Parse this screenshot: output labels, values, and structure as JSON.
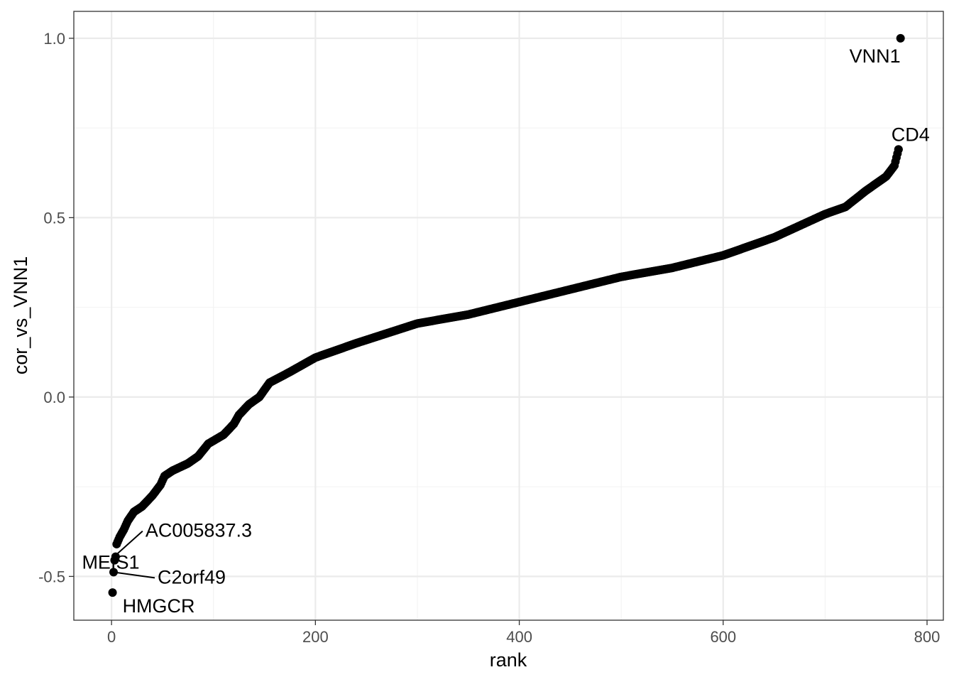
{
  "chart_data": {
    "type": "scatter",
    "xlabel": "rank",
    "ylabel": "cor_vs_VNN1",
    "xlim": [
      -37,
      816
    ],
    "ylim": [
      -0.622,
      1.075
    ],
    "x_ticks": [
      0,
      200,
      400,
      600,
      800
    ],
    "x_tick_labels": [
      "0",
      "200",
      "400",
      "600",
      "800"
    ],
    "y_ticks": [
      -0.5,
      0.0,
      0.5,
      1.0
    ],
    "y_tick_labels": [
      "-0.5",
      "0.0",
      "0.5",
      "1.0"
    ],
    "grid": true,
    "point_color": "#000000",
    "curve_knots": [
      [
        5,
        -0.41
      ],
      [
        8,
        -0.39
      ],
      [
        12,
        -0.37
      ],
      [
        16,
        -0.345
      ],
      [
        22,
        -0.32
      ],
      [
        30,
        -0.305
      ],
      [
        40,
        -0.275
      ],
      [
        48,
        -0.245
      ],
      [
        52,
        -0.22
      ],
      [
        60,
        -0.205
      ],
      [
        75,
        -0.185
      ],
      [
        85,
        -0.165
      ],
      [
        95,
        -0.13
      ],
      [
        110,
        -0.105
      ],
      [
        120,
        -0.075
      ],
      [
        125,
        -0.05
      ],
      [
        135,
        -0.02
      ],
      [
        145,
        0.0
      ],
      [
        155,
        0.04
      ],
      [
        175,
        0.07
      ],
      [
        200,
        0.11
      ],
      [
        240,
        0.15
      ],
      [
        300,
        0.205
      ],
      [
        350,
        0.23
      ],
      [
        400,
        0.265
      ],
      [
        450,
        0.3
      ],
      [
        500,
        0.335
      ],
      [
        550,
        0.36
      ],
      [
        600,
        0.395
      ],
      [
        650,
        0.445
      ],
      [
        700,
        0.51
      ],
      [
        720,
        0.53
      ],
      [
        740,
        0.575
      ],
      [
        760,
        0.615
      ],
      [
        768,
        0.645
      ],
      [
        772,
        0.69
      ]
    ],
    "labeled_points": [
      {
        "label": "VNN1",
        "x": 774,
        "y": 1.0
      },
      {
        "label": "CD4",
        "x": 772,
        "y": 0.69
      },
      {
        "label": "AC005837.3",
        "x": 4,
        "y": -0.445
      },
      {
        "label": "MEIS1",
        "x": 3,
        "y": -0.455
      },
      {
        "label": "C2orf49",
        "x": 2,
        "y": -0.488
      },
      {
        "label": "HMGCR",
        "x": 1,
        "y": -0.545
      }
    ]
  }
}
